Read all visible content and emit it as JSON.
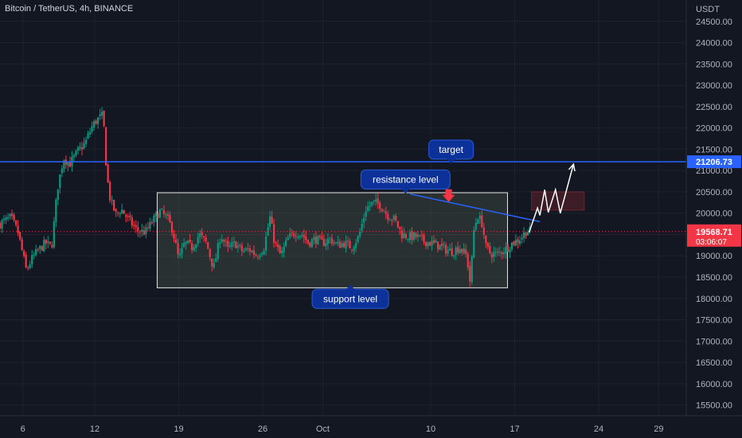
{
  "header": {
    "symbol_title": "Bitcoin / TetherUS, 4h, BINANCE"
  },
  "chart_data": {
    "type": "candlestick",
    "title": "Bitcoin / TetherUS, 4h, BINANCE",
    "currency": "USDT",
    "ylim": [
      15250,
      25000
    ],
    "y_ticks": [
      "15500.00",
      "16000.00",
      "16500.00",
      "17000.00",
      "17500.00",
      "18000.00",
      "18500.00",
      "19000.00",
      "19500.00",
      "20000.00",
      "20500.00",
      "21000.00",
      "21500.00",
      "22000.00",
      "22500.00",
      "23000.00",
      "23500.00",
      "24000.00",
      "24500.00"
    ],
    "x_ticks": [
      {
        "label": "6",
        "day": 6
      },
      {
        "label": "12",
        "day": 12
      },
      {
        "label": "19",
        "day": 19
      },
      {
        "label": "26",
        "day": 26
      },
      {
        "label": "Oct",
        "day": 31
      },
      {
        "label": "10",
        "day": 40
      },
      {
        "label": "17",
        "day": 47
      },
      {
        "label": "24",
        "day": 54
      },
      {
        "label": "29",
        "day": 59
      }
    ],
    "xlim_days": [
      4.1,
      61.3
    ],
    "close_path": [
      [
        4.1,
        19750
      ],
      [
        5.0,
        19900
      ],
      [
        5.6,
        19550
      ],
      [
        6.3,
        18650
      ],
      [
        6.7,
        18900
      ],
      [
        7.2,
        19100
      ],
      [
        7.9,
        19300
      ],
      [
        8.4,
        19200
      ],
      [
        8.9,
        20600
      ],
      [
        9.4,
        21300
      ],
      [
        9.9,
        21150
      ],
      [
        10.6,
        21450
      ],
      [
        11.2,
        21650
      ],
      [
        11.8,
        22050
      ],
      [
        12.2,
        22200
      ],
      [
        12.7,
        22300
      ],
      [
        13.0,
        20900
      ],
      [
        13.3,
        20300
      ],
      [
        13.8,
        19950
      ],
      [
        14.2,
        20100
      ],
      [
        14.8,
        19850
      ],
      [
        15.5,
        19600
      ],
      [
        16.2,
        19550
      ],
      [
        16.8,
        19800
      ],
      [
        17.4,
        20050
      ],
      [
        18.0,
        19900
      ],
      [
        18.5,
        19600
      ],
      [
        19.0,
        18900
      ],
      [
        19.5,
        19300
      ],
      [
        20.1,
        19200
      ],
      [
        20.7,
        19500
      ],
      [
        21.3,
        19300
      ],
      [
        21.9,
        18700
      ],
      [
        22.5,
        19500
      ],
      [
        23.1,
        19150
      ],
      [
        23.7,
        19300
      ],
      [
        24.3,
        19100
      ],
      [
        24.9,
        19150
      ],
      [
        25.5,
        19000
      ],
      [
        26.1,
        19200
      ],
      [
        26.6,
        19900
      ],
      [
        27.0,
        19300
      ],
      [
        27.5,
        19000
      ],
      [
        28.1,
        19400
      ],
      [
        28.7,
        19550
      ],
      [
        29.3,
        19500
      ],
      [
        29.8,
        19300
      ],
      [
        30.4,
        19400
      ],
      [
        31.0,
        19300
      ],
      [
        31.6,
        19400
      ],
      [
        32.2,
        19250
      ],
      [
        32.8,
        19300
      ],
      [
        33.4,
        19200
      ],
      [
        34.0,
        19450
      ],
      [
        34.6,
        20100
      ],
      [
        35.2,
        20250
      ],
      [
        35.8,
        20200
      ],
      [
        36.4,
        19950
      ],
      [
        37.0,
        19850
      ],
      [
        37.6,
        19500
      ],
      [
        38.2,
        19450
      ],
      [
        38.8,
        19450
      ],
      [
        39.4,
        19350
      ],
      [
        40.0,
        19300
      ],
      [
        40.6,
        19250
      ],
      [
        41.2,
        19150
      ],
      [
        41.8,
        19100
      ],
      [
        42.4,
        19200
      ],
      [
        43.0,
        19000
      ],
      [
        43.3,
        18350
      ],
      [
        43.6,
        19600
      ],
      [
        43.9,
        19950
      ],
      [
        44.3,
        19750
      ],
      [
        44.6,
        19200
      ],
      [
        45.0,
        19050
      ],
      [
        45.6,
        19050
      ],
      [
        46.2,
        19150
      ],
      [
        46.8,
        19300
      ],
      [
        47.2,
        19350
      ],
      [
        47.6,
        19450
      ],
      [
        48.0,
        19600
      ],
      [
        48.4,
        19569
      ]
    ],
    "annotations": {
      "target_line_price": 21206.73,
      "target_label": "target",
      "resistance_label": "resistance level",
      "support_label": "support level",
      "range_box": {
        "day_start": 17.2,
        "day_end": 46.4,
        "price_top": 20480,
        "price_bottom": 18250
      },
      "resistance_trendline": [
        [
          38.3,
          20450
        ],
        [
          49.1,
          19800
        ]
      ],
      "arrow_down_at": {
        "day": 41.5,
        "price": 20300
      },
      "projection_path": [
        [
          48.2,
          19550
        ],
        [
          48.9,
          20120
        ],
        [
          49.1,
          19950
        ],
        [
          49.5,
          20550
        ],
        [
          49.8,
          20020
        ],
        [
          50.4,
          20550
        ],
        [
          50.8,
          20000
        ],
        [
          51.9,
          21150
        ]
      ],
      "projection_box": {
        "day_start": 48.4,
        "day_end": 52.8,
        "price_top": 20500,
        "price_bottom": 20070
      }
    },
    "price_labels": [
      {
        "value": "21206.73",
        "price": 21206.73,
        "color": "#2962ff"
      },
      {
        "value": "19568.71",
        "sub": "03:06:07",
        "price": 19568.71,
        "color": "#f23645"
      }
    ],
    "colors": {
      "up": "#089981",
      "down": "#f23645",
      "target": "#2962ff",
      "resistance": "#2962ff",
      "background": "#131722"
    }
  }
}
